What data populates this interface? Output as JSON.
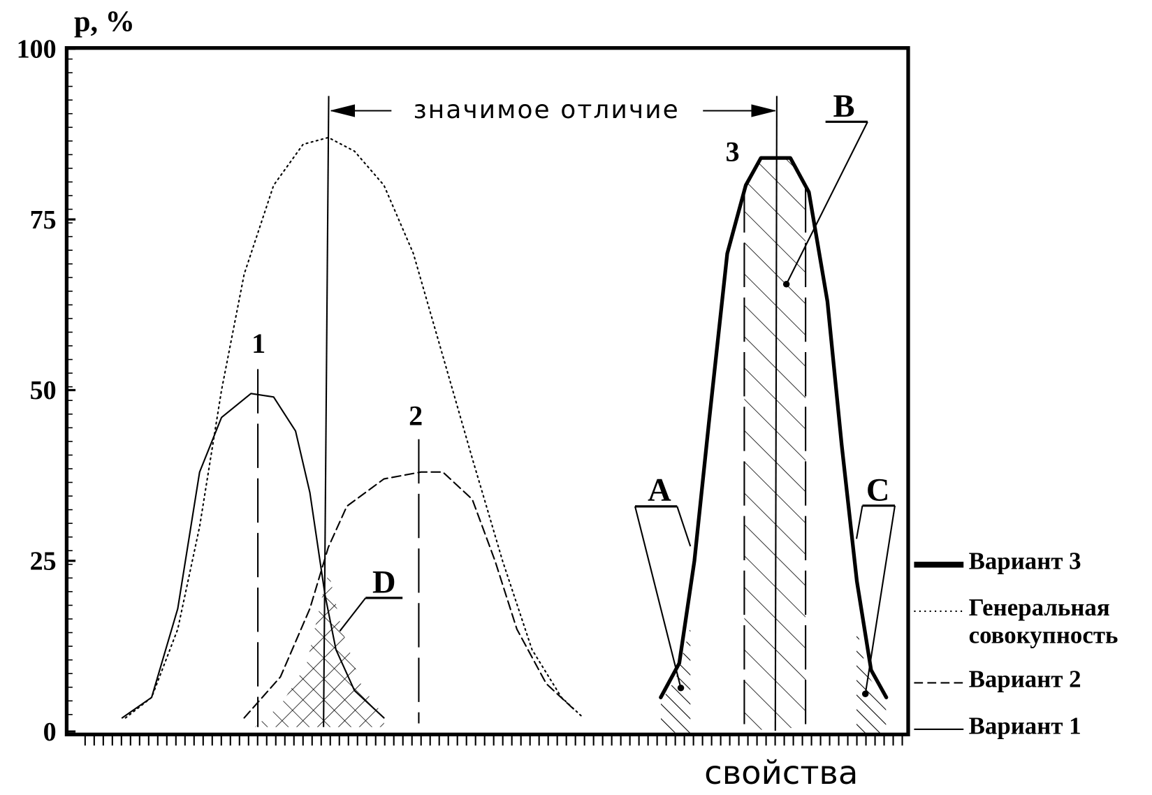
{
  "chart_data": {
    "type": "line",
    "ylabel": "p, %",
    "xlabel": "свойства",
    "color": "#000000",
    "xlim": [
      0,
      100
    ],
    "ylim": [
      0,
      100
    ],
    "yticks": [
      0,
      25,
      50,
      75,
      100
    ],
    "annotations": [
      "значимое отличие",
      "1",
      "2",
      "3",
      "A",
      "B",
      "C",
      "D"
    ],
    "series": [
      {
        "name": "Вариант 3",
        "linestyle": "solid",
        "linewidth": 5,
        "x": [
          70.6,
          72.8,
          74.6,
          76.3,
          78.5,
          80.7,
          82.5,
          86.0,
          88.2,
          90.4,
          92.1,
          93.9,
          95.6,
          97.4
        ],
        "values": [
          5,
          10,
          25,
          45,
          70,
          80,
          84,
          84,
          79,
          63,
          42,
          22,
          9,
          5
        ]
      },
      {
        "name": "Генеральная совокупность",
        "linestyle": "dotted",
        "linewidth": 2,
        "x": [
          7.0,
          10.1,
          13.2,
          15.8,
          18.4,
          21.1,
          24.6,
          28.1,
          31.1,
          34.2,
          37.7,
          41.2,
          44.7,
          48.2,
          51.8,
          55.3,
          58.8,
          61.4
        ],
        "values": [
          2,
          5,
          15,
          30,
          50,
          67,
          80,
          86,
          87,
          85,
          80,
          70,
          55,
          40,
          25,
          12,
          5,
          2
        ]
      },
      {
        "name": "Вариант 2",
        "linestyle": "dashed",
        "linewidth": 2,
        "x": [
          21.1,
          25.4,
          28.9,
          31.1,
          33.3,
          37.7,
          42.1,
          44.7,
          48.2,
          50.9,
          53.5,
          57.0,
          60.5
        ],
        "values": [
          2,
          8,
          18,
          27,
          33,
          37,
          38,
          38,
          34,
          25,
          15,
          7,
          3
        ]
      },
      {
        "name": "Вариант 1",
        "linestyle": "solid",
        "linewidth": 2,
        "x": [
          6.6,
          10.1,
          13.2,
          15.8,
          18.4,
          21.9,
          24.6,
          27.2,
          28.9,
          30.7,
          32.0,
          34.2,
          37.7
        ],
        "values": [
          2,
          5,
          18,
          38,
          46,
          49.5,
          49,
          44,
          35,
          20,
          12,
          6,
          2
        ]
      }
    ]
  }
}
